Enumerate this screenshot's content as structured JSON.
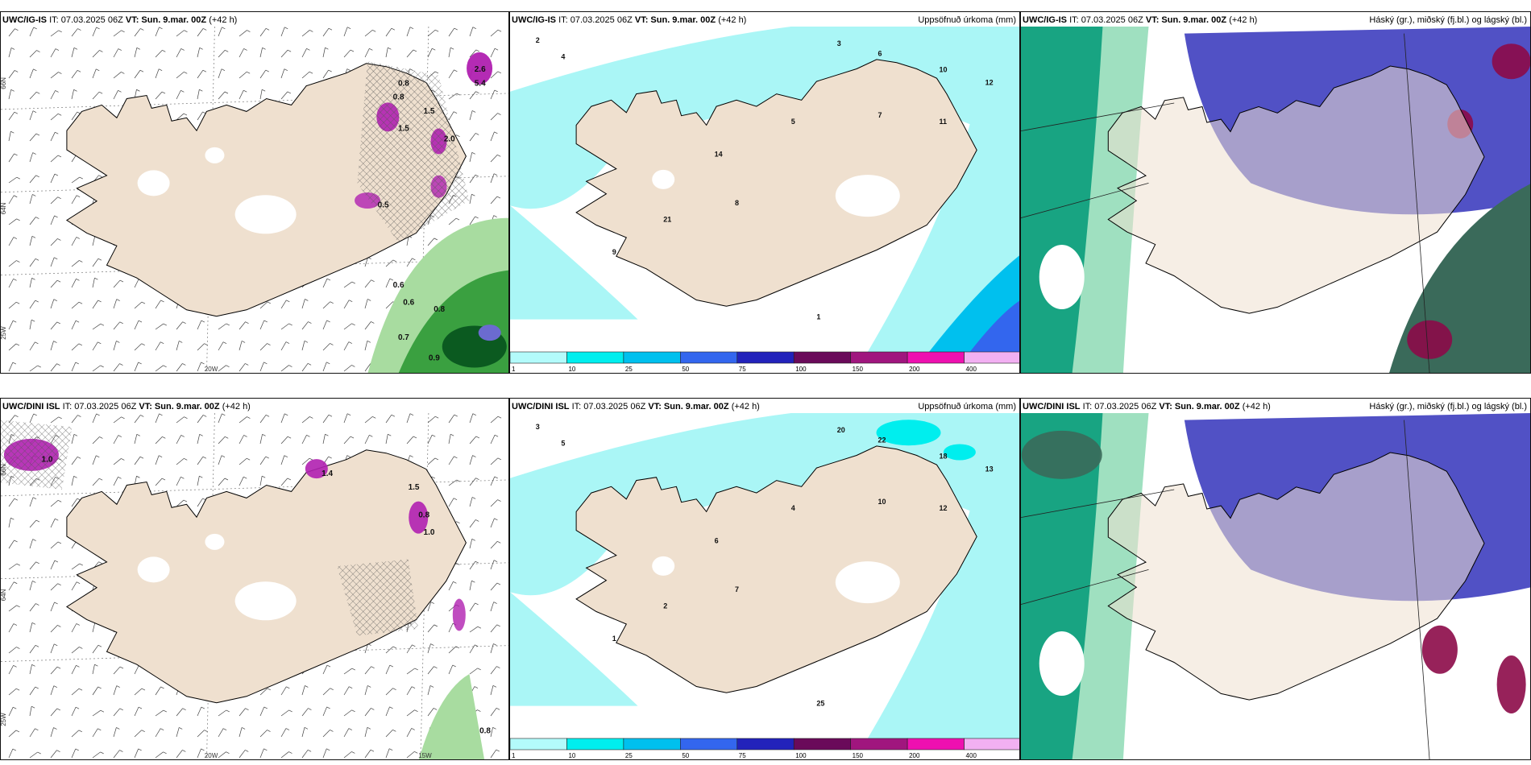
{
  "panels": [
    {
      "id": "p1",
      "model": "UWC/IG-IS",
      "it": "IT: 07.03.2025 06Z",
      "vt_label": "VT:",
      "vt": "Sun. 9.mar. 00Z",
      "lead": "(+42 h)",
      "right": "",
      "kind": "wind",
      "lats": [
        "66N",
        "64N",
        "25W"
      ],
      "lons": [
        "20W"
      ],
      "values": [
        {
          "t": "0.8"
        },
        {
          "t": "0.8"
        },
        {
          "t": "1.5"
        },
        {
          "t": "2.0"
        },
        {
          "t": "1.5"
        },
        {
          "t": "0.5"
        },
        {
          "t": "0.6"
        },
        {
          "t": "0.6"
        },
        {
          "t": "0.8"
        },
        {
          "t": "0.7"
        },
        {
          "t": "0.9"
        },
        {
          "t": "2.6"
        },
        {
          "t": "5.4"
        }
      ]
    },
    {
      "id": "p2",
      "model": "UWC/IG-IS",
      "it": "IT: 07.03.2025 06Z",
      "vt_label": "VT:",
      "vt": "Sun. 9.mar. 00Z",
      "lead": "(+42 h)",
      "right": "Uppsöfnuð úrkoma (mm)",
      "kind": "precip",
      "values": [
        {
          "t": "2"
        },
        {
          "t": "4"
        },
        {
          "t": "3"
        },
        {
          "t": "6"
        },
        {
          "t": "10"
        },
        {
          "t": "12"
        },
        {
          "t": "7"
        },
        {
          "t": "11"
        },
        {
          "t": "1"
        },
        {
          "t": "14"
        },
        {
          "t": "21"
        },
        {
          "t": "5"
        },
        {
          "t": "9"
        },
        {
          "t": "8"
        }
      ]
    },
    {
      "id": "p3",
      "model": "UWC/IG-IS",
      "it": "IT: 07.03.2025 06Z",
      "vt_label": "VT:",
      "vt": "Sun. 9.mar. 00Z",
      "lead": "(+42 h)",
      "right": "Háský (gr.), miðský (fj.bl.) og lágský (bl.)",
      "kind": "cloud"
    },
    {
      "id": "p4",
      "model": "UWC/DINI ISL",
      "it": "IT: 07.03.2025 06Z",
      "vt_label": "VT:",
      "vt": "Sun. 9.mar. 00Z",
      "lead": "(+42 h)",
      "right": "",
      "kind": "wind",
      "lats": [
        "66N",
        "64N",
        "25W"
      ],
      "lons": [
        "20W",
        "15W"
      ],
      "values": [
        {
          "t": "1.0"
        },
        {
          "t": "1.4"
        },
        {
          "t": "1.5"
        },
        {
          "t": "0.8"
        },
        {
          "t": "1.0"
        },
        {
          "t": "0.8"
        }
      ]
    },
    {
      "id": "p5",
      "model": "UWC/DINI ISL",
      "it": "IT: 07.03.2025 06Z",
      "vt_label": "VT:",
      "vt": "Sun. 9.mar. 00Z",
      "lead": "(+42 h)",
      "right": "Uppsöfnuð úrkoma (mm)",
      "kind": "precip",
      "values": [
        {
          "t": "3"
        },
        {
          "t": "5"
        },
        {
          "t": "20"
        },
        {
          "t": "22"
        },
        {
          "t": "18"
        },
        {
          "t": "13"
        },
        {
          "t": "10"
        },
        {
          "t": "12"
        },
        {
          "t": "25"
        },
        {
          "t": "6"
        },
        {
          "t": "2"
        },
        {
          "t": "4"
        },
        {
          "t": "1"
        },
        {
          "t": "7"
        }
      ]
    },
    {
      "id": "p6",
      "model": "UWC/DINI ISL",
      "it": "IT: 07.03.2025 06Z",
      "vt_label": "VT:",
      "vt": "Sun. 9.mar. 00Z",
      "lead": "(+42 h)",
      "right": "Háský (gr.), miðský (fj.bl.) og lágský (bl.)",
      "kind": "cloud"
    }
  ],
  "legend": {
    "labels": [
      "1",
      "10",
      "25",
      "50",
      "75",
      "100",
      "150",
      "200",
      "400"
    ],
    "colors": [
      "#b3fbfb",
      "#00eeee",
      "#00c0ee",
      "#3366ee",
      "#2222bb",
      "#6a0a5a",
      "#a0167e",
      "#ee10b0",
      "#f2b0f2"
    ]
  },
  "colors": {
    "land": "#efe0cf",
    "coast": "#000000",
    "precip_light": "#aaf6f6",
    "cloud_high": "#009977",
    "cloud_mid": "#3333bb",
    "cloud_low": "#8c0a48",
    "snow": "#b020b0"
  }
}
